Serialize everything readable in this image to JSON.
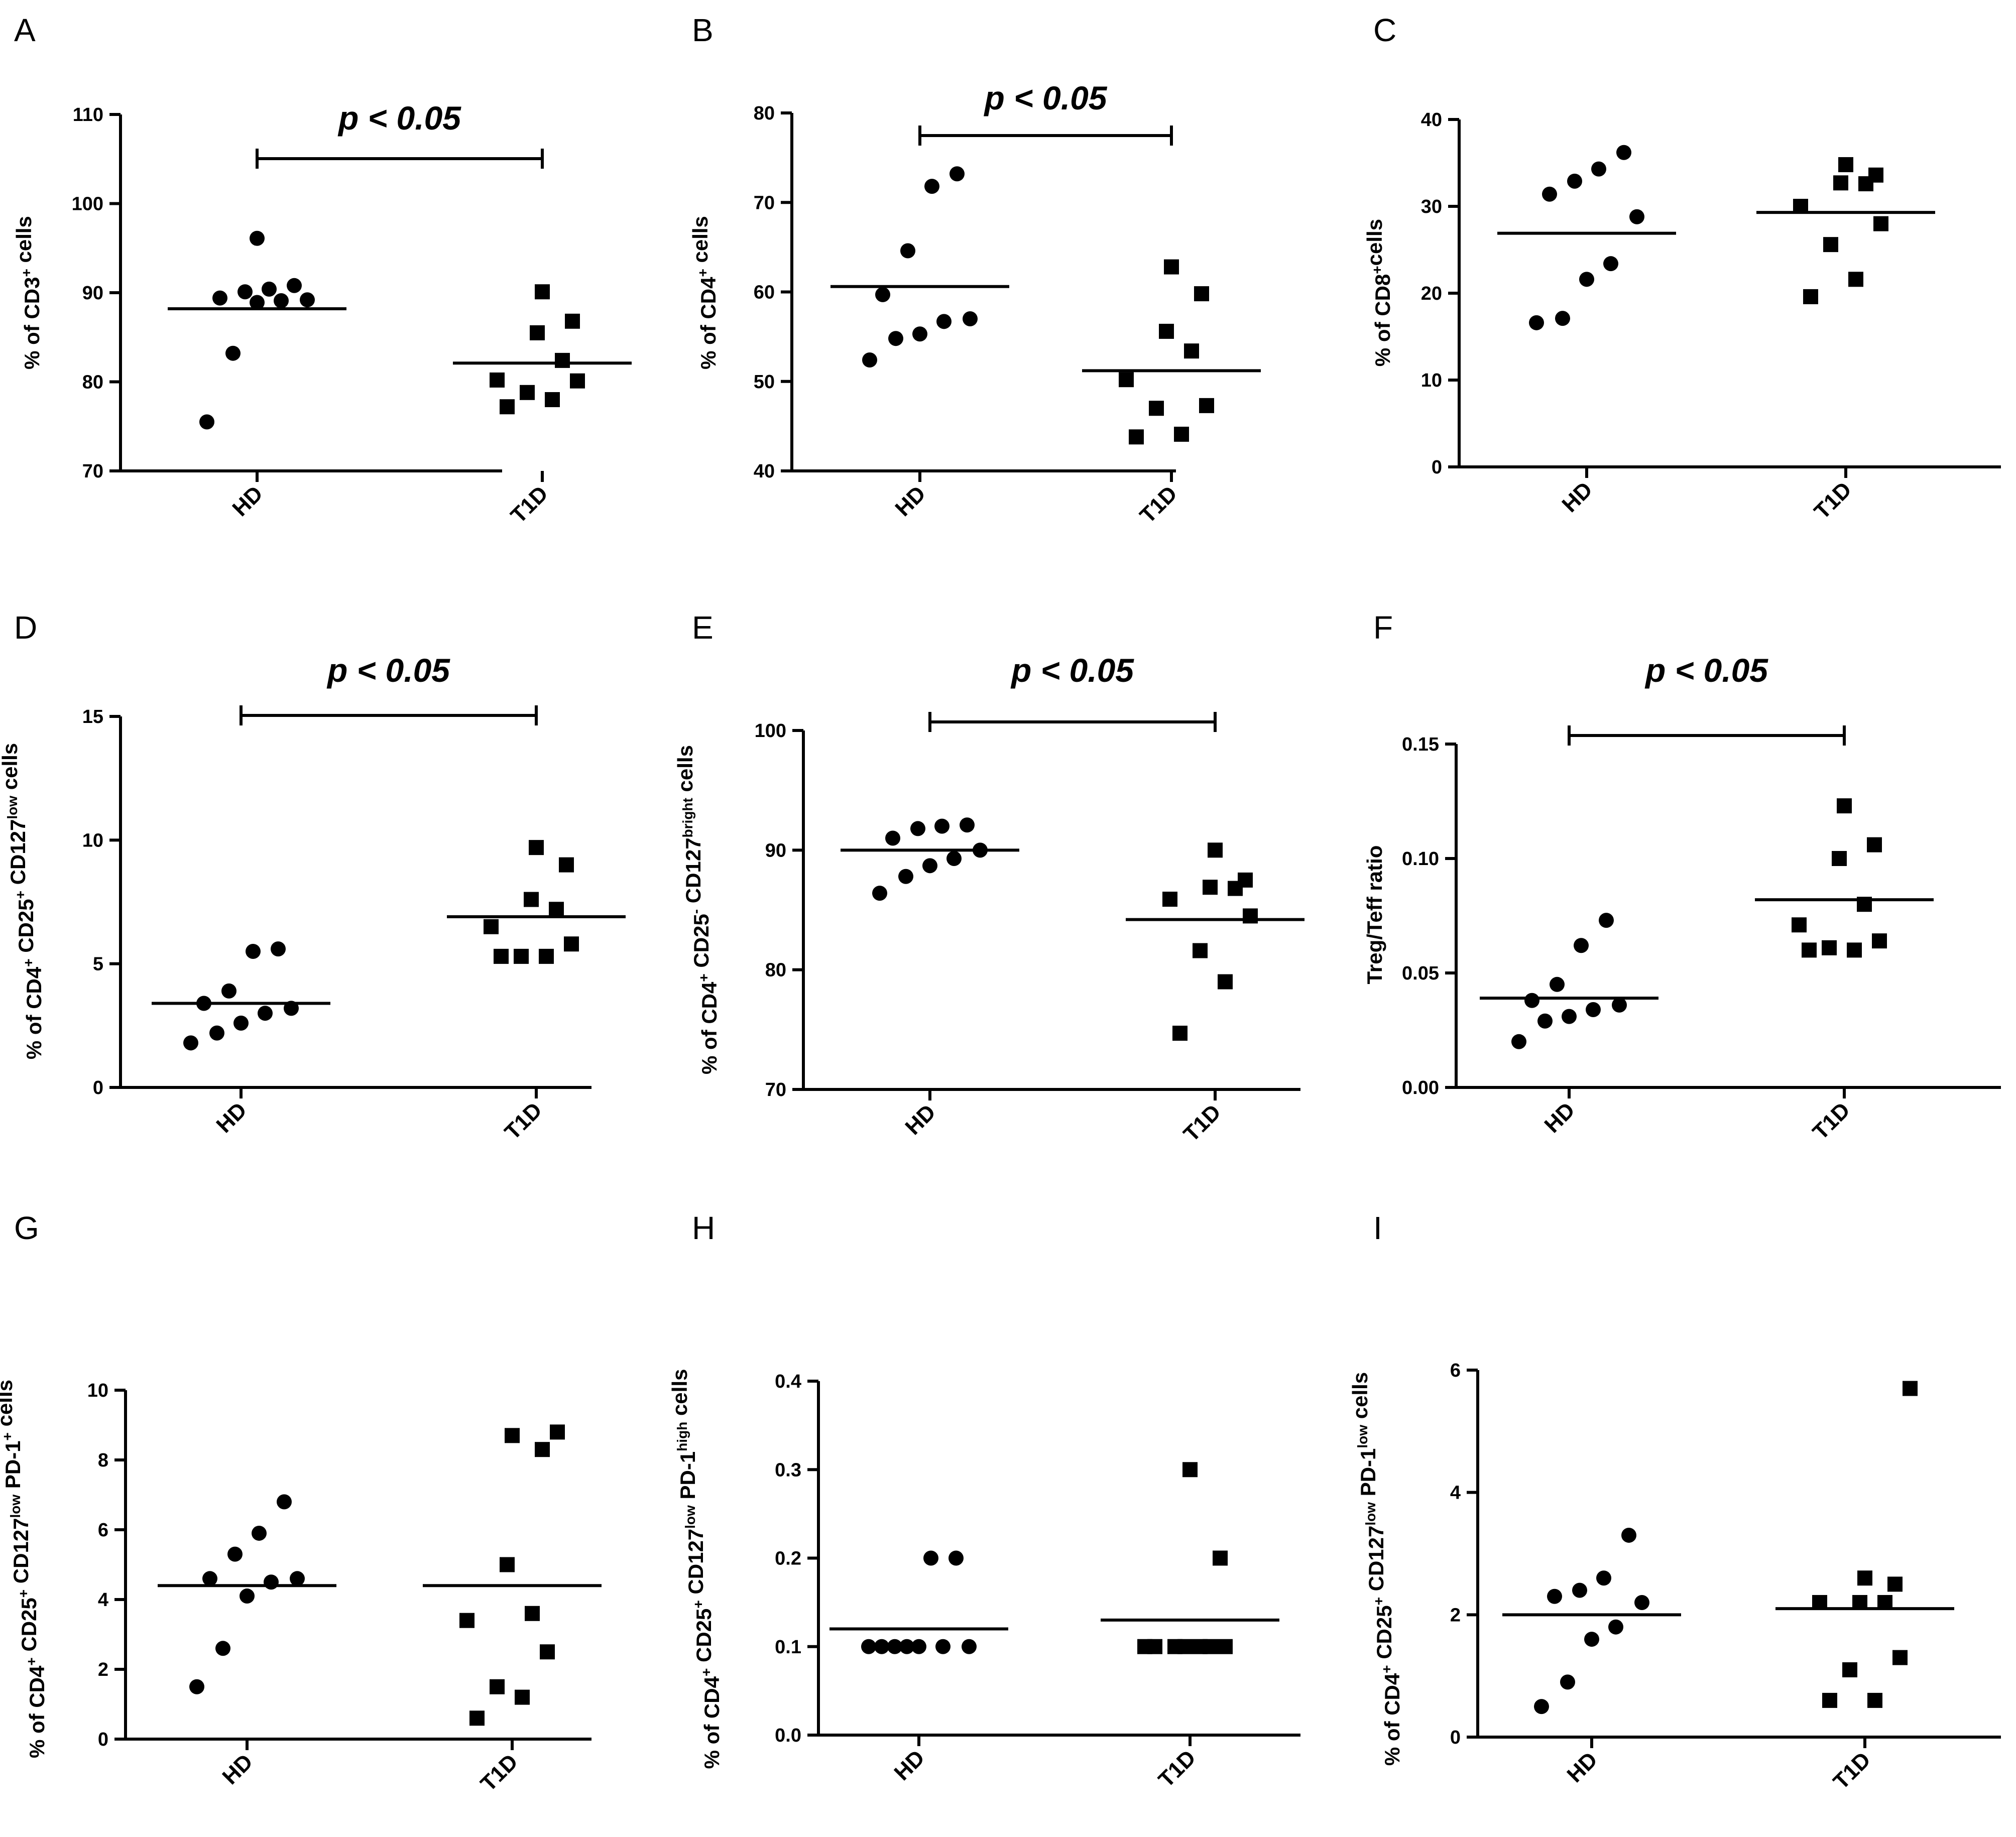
{
  "chart_data": [
    {
      "type": "scatter",
      "panel": "A",
      "categories": [
        "HD",
        "T1D"
      ],
      "ylabel": [
        {
          "t": "% of CD3"
        },
        {
          "t": "+",
          "sup": true
        },
        {
          "t": " cells"
        }
      ],
      "ylim": [
        70,
        110
      ],
      "yticks": [
        70,
        80,
        90,
        100,
        110
      ],
      "tick_decimals": 0,
      "series": [
        {
          "name": "HD",
          "marker": "circle",
          "values": [
            75.5,
            83.2,
            88.9,
            89.1,
            89.2,
            89.4,
            90.1,
            90.4,
            90.8,
            96.1
          ],
          "mean": 88.2
        },
        {
          "name": "T1D",
          "marker": "square",
          "values": [
            77.2,
            78.0,
            78.8,
            80.1,
            80.2,
            82.4,
            85.5,
            86.8,
            90.1
          ],
          "mean": 82.1
        }
      ],
      "significance": "p < 0.05"
    },
    {
      "type": "scatter",
      "panel": "B",
      "categories": [
        "HD",
        "T1D"
      ],
      "ylabel": [
        {
          "t": "% of CD4"
        },
        {
          "t": "+",
          "sup": true
        },
        {
          "t": " cells"
        }
      ],
      "ylim": [
        40,
        80
      ],
      "yticks": [
        40,
        50,
        60,
        70,
        80
      ],
      "tick_decimals": 0,
      "series": [
        {
          "name": "HD",
          "marker": "circle",
          "values": [
            52.4,
            54.8,
            55.3,
            56.7,
            57.0,
            59.7,
            64.6,
            71.8,
            73.2
          ],
          "mean": 60.6
        },
        {
          "name": "T1D",
          "marker": "square",
          "values": [
            43.8,
            44.1,
            47.0,
            47.3,
            50.2,
            53.4,
            55.6,
            59.8,
            62.8
          ],
          "mean": 51.2
        }
      ],
      "significance": "p < 0.05"
    },
    {
      "type": "scatter",
      "panel": "C",
      "categories": [
        "HD",
        "T1D"
      ],
      "ylabel": [
        {
          "t": "% of CD8"
        },
        {
          "t": "+",
          "sup": true
        },
        {
          "t": "cells"
        }
      ],
      "ylim": [
        0,
        40
      ],
      "yticks": [
        0,
        10,
        20,
        30,
        40
      ],
      "tick_decimals": 0,
      "series": [
        {
          "name": "HD",
          "marker": "circle",
          "values": [
            16.6,
            17.1,
            21.6,
            23.4,
            28.8,
            31.4,
            32.9,
            34.3,
            36.2
          ],
          "mean": 26.9
        },
        {
          "name": "T1D",
          "marker": "square",
          "values": [
            19.6,
            21.6,
            25.6,
            28.0,
            30.0,
            32.6,
            32.7,
            33.6,
            34.8
          ],
          "mean": 29.3
        }
      ],
      "significance": ""
    },
    {
      "type": "scatter",
      "panel": "D",
      "categories": [
        "HD",
        "T1D"
      ],
      "ylabel": [
        {
          "t": "% of CD4"
        },
        {
          "t": "+",
          "sup": true
        },
        {
          "t": " CD25"
        },
        {
          "t": "+",
          "sup": true
        },
        {
          "t": " CD127"
        },
        {
          "t": "low",
          "sup": true
        },
        {
          "t": " cells"
        }
      ],
      "ylim": [
        0,
        15
      ],
      "yticks": [
        0,
        5,
        10,
        15
      ],
      "tick_decimals": 0,
      "series": [
        {
          "name": "HD",
          "marker": "circle",
          "values": [
            1.8,
            2.2,
            2.6,
            3.0,
            3.2,
            3.4,
            3.9,
            5.5,
            5.6
          ],
          "mean": 3.4
        },
        {
          "name": "T1D",
          "marker": "square",
          "values": [
            5.3,
            5.3,
            5.3,
            5.8,
            6.5,
            7.2,
            7.6,
            9.0,
            9.7
          ],
          "mean": 6.9
        }
      ],
      "significance": "p < 0.05"
    },
    {
      "type": "scatter",
      "panel": "E",
      "categories": [
        "HD",
        "T1D"
      ],
      "ylabel": [
        {
          "t": "% of CD4"
        },
        {
          "t": "+",
          "sup": true
        },
        {
          "t": " CD25"
        },
        {
          "t": "-",
          "sup": true
        },
        {
          "t": " CD127"
        },
        {
          "t": "bright",
          "sup": true
        },
        {
          "t": " cells"
        }
      ],
      "ylim": [
        70,
        100
      ],
      "yticks": [
        70,
        80,
        90,
        100
      ],
      "tick_decimals": 0,
      "series": [
        {
          "name": "HD",
          "marker": "circle",
          "values": [
            86.4,
            87.8,
            88.7,
            89.3,
            90.0,
            91.0,
            91.8,
            92.0,
            92.1
          ],
          "mean": 90.0
        },
        {
          "name": "T1D",
          "marker": "square",
          "values": [
            74.7,
            79.0,
            81.6,
            84.5,
            85.9,
            86.8,
            86.9,
            87.5,
            90.0
          ],
          "mean": 84.2
        }
      ],
      "significance": "p < 0.05"
    },
    {
      "type": "scatter",
      "panel": "F",
      "categories": [
        "HD",
        "T1D"
      ],
      "ylabel": [
        {
          "t": "Treg/Teff ratio"
        }
      ],
      "ylim": [
        0,
        0.15
      ],
      "yticks": [
        0,
        0.05,
        0.1,
        0.15
      ],
      "tick_decimals": 2,
      "series": [
        {
          "name": "HD",
          "marker": "circle",
          "values": [
            0.02,
            0.029,
            0.031,
            0.034,
            0.036,
            0.038,
            0.045,
            0.062,
            0.073
          ],
          "mean": 0.039
        },
        {
          "name": "T1D",
          "marker": "square",
          "values": [
            0.06,
            0.06,
            0.061,
            0.064,
            0.071,
            0.08,
            0.1,
            0.106,
            0.123
          ],
          "mean": 0.082
        }
      ],
      "significance": "p < 0.05"
    },
    {
      "type": "scatter",
      "panel": "G",
      "categories": [
        "HD",
        "T1D"
      ],
      "ylabel": [
        {
          "t": "% of CD4"
        },
        {
          "t": "+",
          "sup": true
        },
        {
          "t": " CD25"
        },
        {
          "t": "+",
          "sup": true
        },
        {
          "t": " CD127"
        },
        {
          "t": "low",
          "sup": true
        },
        {
          "t": " PD-1"
        },
        {
          "t": "+",
          "sup": true
        },
        {
          "t": " cells"
        }
      ],
      "ylim": [
        0,
        10
      ],
      "yticks": [
        0,
        2,
        4,
        6,
        8,
        10
      ],
      "tick_decimals": 0,
      "series": [
        {
          "name": "HD",
          "marker": "circle",
          "values": [
            1.5,
            2.6,
            4.1,
            4.5,
            4.6,
            4.6,
            5.3,
            5.9,
            6.8
          ],
          "mean": 4.4
        },
        {
          "name": "T1D",
          "marker": "square",
          "values": [
            0.6,
            1.2,
            1.5,
            2.5,
            3.4,
            3.6,
            5.0,
            8.3,
            8.7,
            8.8
          ],
          "mean": 4.4
        }
      ],
      "significance": ""
    },
    {
      "type": "scatter",
      "panel": "H",
      "categories": [
        "HD",
        "T1D"
      ],
      "ylabel": [
        {
          "t": "% of CD4"
        },
        {
          "t": "+",
          "sup": true
        },
        {
          "t": " CD25"
        },
        {
          "t": "+",
          "sup": true
        },
        {
          "t": " CD127"
        },
        {
          "t": "low",
          "sup": true
        },
        {
          "t": " PD-1"
        },
        {
          "t": "high",
          "sup": true
        },
        {
          "t": " cells"
        }
      ],
      "ylim": [
        0,
        0.4
      ],
      "yticks": [
        0,
        0.1,
        0.2,
        0.3,
        0.4
      ],
      "tick_decimals": 1,
      "series": [
        {
          "name": "HD",
          "marker": "circle",
          "values": [
            0.1,
            0.1,
            0.1,
            0.1,
            0.1,
            0.1,
            0.1,
            0.2,
            0.2
          ],
          "mean": 0.12
        },
        {
          "name": "T1D",
          "marker": "square",
          "values": [
            0.1,
            0.1,
            0.1,
            0.1,
            0.1,
            0.1,
            0.1,
            0.2,
            0.3
          ],
          "mean": 0.13
        }
      ],
      "significance": ""
    },
    {
      "type": "scatter",
      "panel": "I",
      "categories": [
        "HD",
        "T1D"
      ],
      "ylabel": [
        {
          "t": "% of CD4"
        },
        {
          "t": "+",
          "sup": true
        },
        {
          "t": " CD25"
        },
        {
          "t": "+",
          "sup": true
        },
        {
          "t": " CD127"
        },
        {
          "t": "low",
          "sup": true
        },
        {
          "t": " PD-1"
        },
        {
          "t": "low",
          "sup": true
        },
        {
          "t": " cells"
        }
      ],
      "ylim": [
        0,
        6
      ],
      "yticks": [
        0,
        2,
        4,
        6
      ],
      "tick_decimals": 0,
      "series": [
        {
          "name": "HD",
          "marker": "circle",
          "values": [
            0.5,
            0.9,
            1.6,
            1.8,
            2.2,
            2.3,
            2.4,
            2.6,
            3.3
          ],
          "mean": 2.0
        },
        {
          "name": "T1D",
          "marker": "square",
          "values": [
            0.6,
            0.6,
            1.1,
            1.3,
            2.2,
            2.2,
            2.2,
            2.5,
            2.6,
            5.7
          ],
          "mean": 2.1
        }
      ],
      "significance": ""
    }
  ]
}
